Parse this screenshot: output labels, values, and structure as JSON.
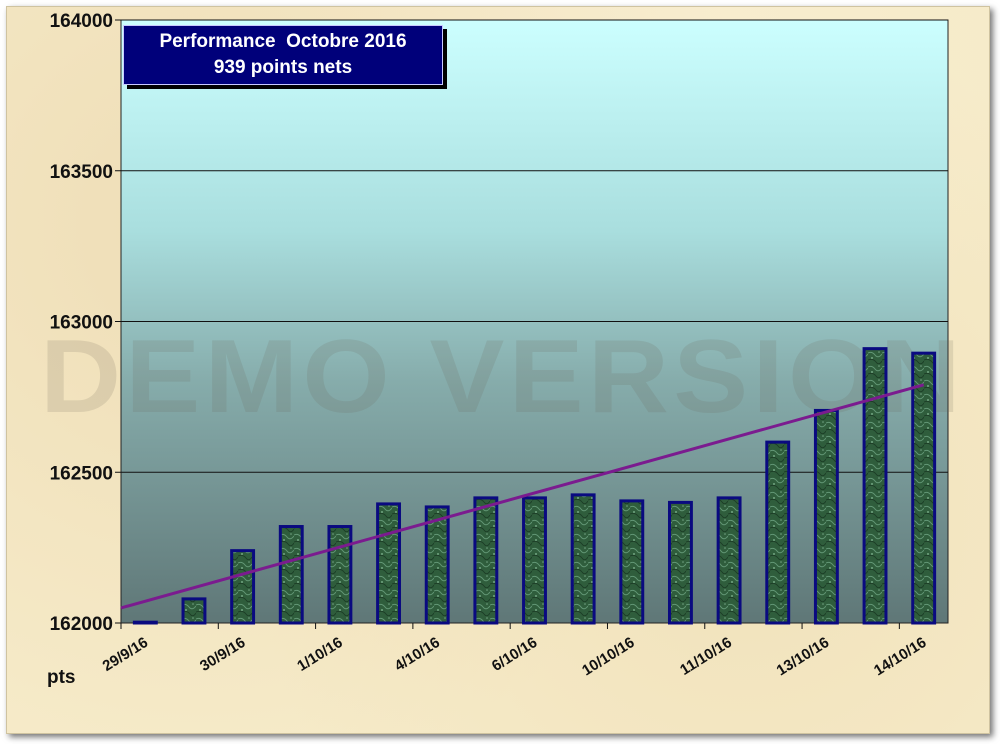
{
  "chart_data": {
    "type": "bar",
    "title": "Performance  Octobre 2016",
    "subtitle": "939 points nets",
    "ylabel": "pts",
    "ylim": [
      162000,
      164000
    ],
    "yticks": [
      162000,
      162500,
      163000,
      163500,
      164000
    ],
    "x_tick_labels": [
      "29/9/16",
      "30/9/16",
      "1/10/16",
      "4/10/16",
      "6/10/16",
      "10/10/16",
      "11/10/16",
      "13/10/16",
      "14/10/16"
    ],
    "values": [
      162000,
      162080,
      162240,
      162320,
      162320,
      162395,
      162385,
      162415,
      162415,
      162425,
      162405,
      162400,
      162415,
      162600,
      162705,
      162910,
      162895
    ],
    "trendline": {
      "start": 162050,
      "end": 162790
    },
    "grid": true,
    "watermark": "DEMO VERSION",
    "colors": {
      "bar_fill": "#2f5d3c",
      "bar_border": "#0a0a80",
      "trend": "#7b1b8f",
      "plot_top": "#ccffff",
      "plot_bottom": "#5f7777",
      "title_box": "#00007a"
    }
  }
}
